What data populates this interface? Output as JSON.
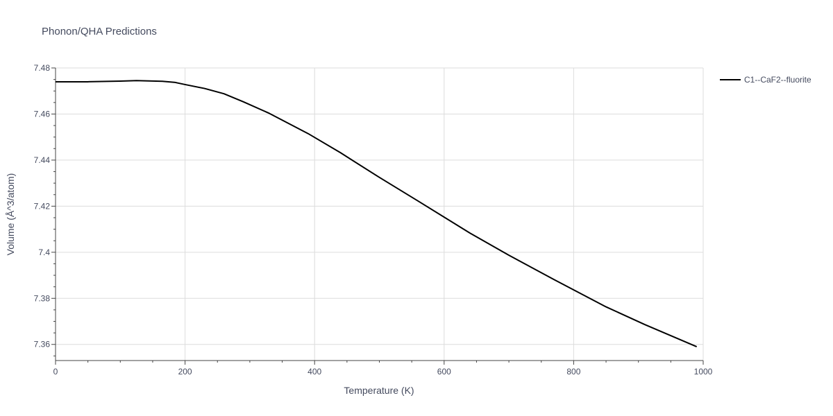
{
  "chart_data": {
    "type": "line",
    "title": "Phonon/QHA Predictions",
    "xlabel": "Temperature (K)",
    "ylabel": "Volume (Å^3/atom)",
    "xlim": [
      0,
      1000
    ],
    "ylim": [
      7.353,
      7.48
    ],
    "grid": true,
    "legend_position": "top-right",
    "x_ticks": [
      0,
      200,
      400,
      600,
      800,
      1000
    ],
    "x_tick_labels": [
      "0",
      "200",
      "400",
      "600",
      "800",
      "1000"
    ],
    "y_ticks": [
      7.36,
      7.38,
      7.4,
      7.42,
      7.44,
      7.46,
      7.48
    ],
    "y_tick_labels": [
      "7.36",
      "7.38",
      "7.4",
      "7.42",
      "7.44",
      "7.46",
      "7.48"
    ],
    "series": [
      {
        "name": "C1--CaF2--fluorite",
        "color": "#000000",
        "x": [
          0,
          50,
          100,
          125,
          165,
          185,
          200,
          230,
          260,
          290,
          330,
          390,
          440,
          500,
          560,
          640,
          700,
          770,
          850,
          910,
          990
        ],
        "y": [
          7.474,
          7.474,
          7.4743,
          7.4745,
          7.4742,
          7.4737,
          7.4728,
          7.4711,
          7.4688,
          7.4653,
          7.4603,
          7.4515,
          7.4432,
          7.4325,
          7.4222,
          7.4083,
          7.3987,
          7.3881,
          7.3763,
          7.3686,
          7.359
        ]
      }
    ]
  }
}
